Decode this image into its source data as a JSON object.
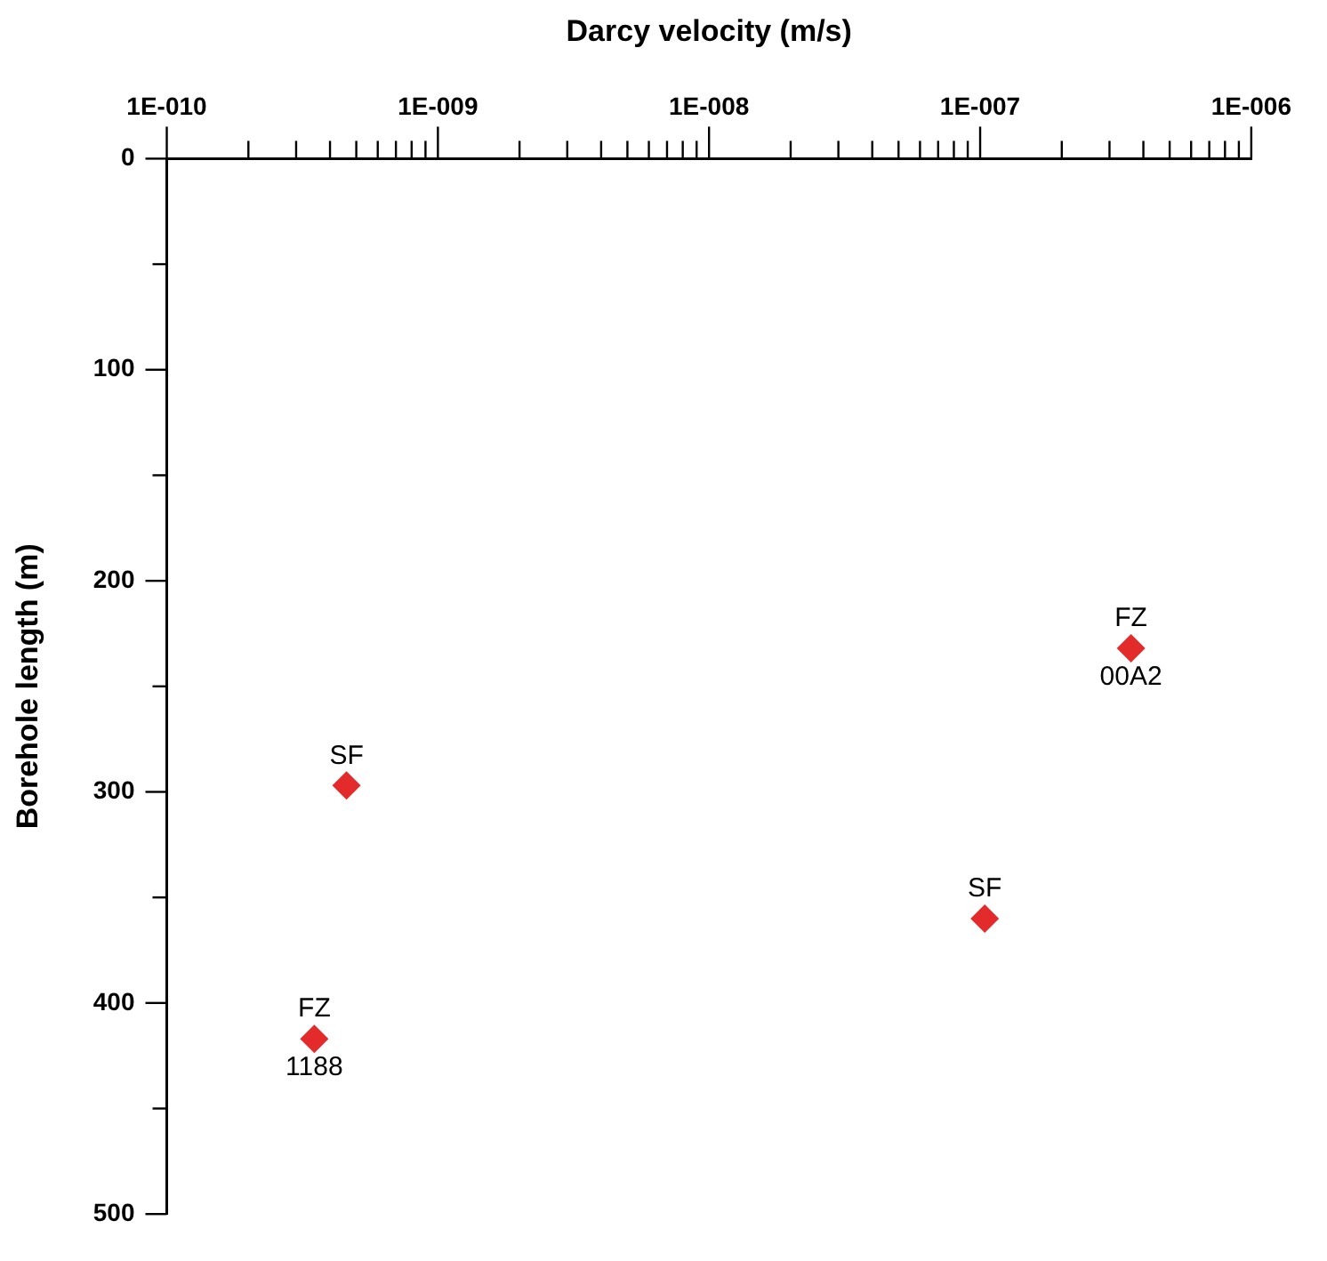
{
  "chart_data": {
    "type": "scatter",
    "xlabel": "Darcy velocity (m/s)",
    "ylabel": "Borehole length (m)",
    "log": "x",
    "grid": false,
    "legend": false,
    "marker": "diamond",
    "x": [
      4.6e-10,
      3.5e-10,
      1.04e-07,
      3.6e-07
    ],
    "values": [
      297,
      417,
      360,
      232
    ],
    "color": "#e32b2b",
    "xlim": [
      1e-10,
      1e-06
    ],
    "xticks": [
      {
        "value": 1e-10,
        "label": "1E-010"
      },
      {
        "value": 2e-10,
        "label": null
      },
      {
        "value": 3e-10,
        "label": null
      },
      {
        "value": 4e-10,
        "label": null
      },
      {
        "value": 5e-10,
        "label": null
      },
      {
        "value": 6e-10,
        "label": null
      },
      {
        "value": 7e-10,
        "label": null
      },
      {
        "value": 8e-10,
        "label": null
      },
      {
        "value": 9e-10,
        "label": null
      },
      {
        "value": 1e-09,
        "label": "1E-009"
      },
      {
        "value": 2e-09,
        "label": null
      },
      {
        "value": 3e-09,
        "label": null
      },
      {
        "value": 4e-09,
        "label": null
      },
      {
        "value": 5e-09,
        "label": null
      },
      {
        "value": 6e-09,
        "label": null
      },
      {
        "value": 7e-09,
        "label": null
      },
      {
        "value": 8e-09,
        "label": null
      },
      {
        "value": 9e-09,
        "label": null
      },
      {
        "value": 1e-08,
        "label": "1E-008"
      },
      {
        "value": 2e-08,
        "label": null
      },
      {
        "value": 3e-08,
        "label": null
      },
      {
        "value": 4e-08,
        "label": null
      },
      {
        "value": 5e-08,
        "label": null
      },
      {
        "value": 6e-08,
        "label": null
      },
      {
        "value": 7e-08,
        "label": null
      },
      {
        "value": 8e-08,
        "label": null
      },
      {
        "value": 9e-08,
        "label": null
      },
      {
        "value": 1e-07,
        "label": "1E-007"
      },
      {
        "value": 2e-07,
        "label": null
      },
      {
        "value": 3e-07,
        "label": null
      },
      {
        "value": 4e-07,
        "label": null
      },
      {
        "value": 5e-07,
        "label": null
      },
      {
        "value": 6e-07,
        "label": null
      },
      {
        "value": 7e-07,
        "label": null
      },
      {
        "value": 8e-07,
        "label": null
      },
      {
        "value": 9e-07,
        "label": null
      },
      {
        "value": 1e-06,
        "label": "1E-006"
      }
    ],
    "ylim": [
      500,
      0
    ],
    "yticks": [
      0,
      {
        "value": 50,
        "label": null
      },
      100,
      {
        "value": 150,
        "label": null
      },
      200,
      {
        "value": 250,
        "label": null
      },
      300,
      {
        "value": 350,
        "label": null
      },
      400,
      {
        "value": 450,
        "label": null
      },
      500
    ],
    "annotations": [
      {
        "text": "SF",
        "x": 4.6e-10,
        "y": 297
      },
      {
        "text": "FZ\n1188",
        "x": 3.5e-10,
        "y": 417
      },
      {
        "text": "SF",
        "x": 1.04e-07,
        "y": 360
      },
      {
        "text": "FZ\n00A2",
        "x": 3.6e-07,
        "y": 232
      }
    ]
  }
}
